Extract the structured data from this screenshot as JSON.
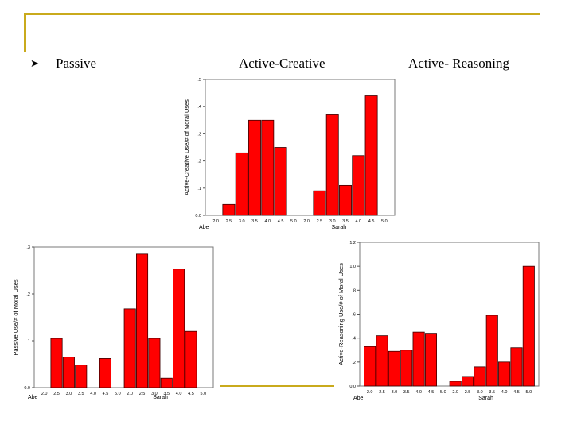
{
  "slide": {
    "headings": {
      "passive": "Passive",
      "active_creative": "Active-Creative",
      "active_reasoning": "Active- Reasoning"
    },
    "bullet_icon": "arrow-bullet-icon",
    "colors": {
      "accent": "#c9aa1c",
      "bar": "#ff0000",
      "bar_stroke": "#3a0000"
    }
  },
  "chart_data": [
    {
      "id": "active-creative",
      "type": "bar",
      "ylabel": "Active-Creative Use/# of Moral Uses",
      "ylim": [
        0,
        0.5
      ],
      "yticks": [
        0.0,
        0.1,
        0.2,
        0.3,
        0.4,
        0.5
      ],
      "ytick_labels": [
        "0.0",
        ".1",
        ".2",
        ".3",
        ".4",
        ".5"
      ],
      "groups": [
        {
          "name": "Abe",
          "categories": [
            "2.0",
            "2.5",
            "3.0",
            "3.5",
            "4.0",
            "4.5",
            "5.0"
          ],
          "values": [
            0,
            0.04,
            0.23,
            0.35,
            0.35,
            0.25,
            0
          ]
        },
        {
          "name": "Sarah",
          "categories": [
            "2.0",
            "2.5",
            "3.0",
            "3.5",
            "4.0",
            "4.5",
            "5.0"
          ],
          "values": [
            0,
            0.09,
            0.37,
            0.11,
            0.22,
            0.44,
            0
          ]
        }
      ]
    },
    {
      "id": "passive",
      "type": "bar",
      "ylabel": "Passive Use/# of Moral Uses",
      "ylim": [
        0,
        0.3
      ],
      "yticks": [
        0.0,
        0.1,
        0.2,
        0.3
      ],
      "ytick_labels": [
        "0.0",
        ".1",
        ".2",
        ".3"
      ],
      "groups": [
        {
          "name": "Abe",
          "categories": [
            "2.0",
            "2.5",
            "3.0",
            "3.5",
            "4.0",
            "4.5",
            "5.0"
          ],
          "values": [
            0,
            0.105,
            0.065,
            0.048,
            0,
            0.062,
            0
          ]
        },
        {
          "name": "Sarah",
          "categories": [
            "2.0",
            "2.5",
            "3.0",
            "3.5",
            "4.0",
            "4.5",
            "5.0"
          ],
          "values": [
            0.168,
            0.285,
            0.105,
            0.02,
            0.253,
            0.12,
            0
          ]
        }
      ]
    },
    {
      "id": "active-reasoning",
      "type": "bar",
      "ylabel": "Active-Reasoning Use/# of Moral Uses",
      "ylim": [
        0,
        1.2
      ],
      "yticks": [
        0.0,
        0.2,
        0.4,
        0.6,
        0.8,
        1.0,
        1.2
      ],
      "ytick_labels": [
        "0.0",
        ".2",
        ".4",
        ".6",
        ".8",
        "1.0",
        "1.2"
      ],
      "groups": [
        {
          "name": "Abe",
          "categories": [
            "2.0",
            "2.5",
            "3.0",
            "3.5",
            "4.0",
            "4.5",
            "5.0"
          ],
          "values": [
            0.33,
            0.42,
            0.29,
            0.3,
            0.45,
            0.44,
            0
          ]
        },
        {
          "name": "Sarah",
          "categories": [
            "2.0",
            "2.5",
            "3.0",
            "3.5",
            "4.0",
            "4.5",
            "5.0"
          ],
          "values": [
            0.04,
            0.08,
            0.16,
            0.59,
            0.2,
            0.32,
            1.0
          ]
        }
      ]
    }
  ]
}
